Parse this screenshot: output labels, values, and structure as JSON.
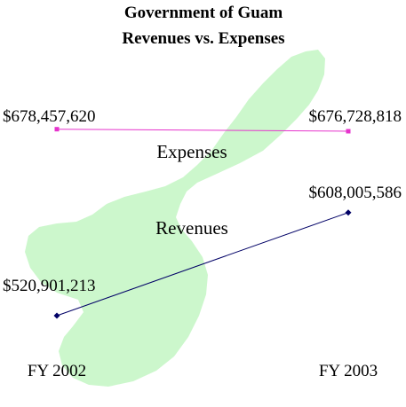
{
  "colors": {
    "island": "#ccf7cc",
    "expenses": "#e633cc",
    "revenues": "#000066"
  },
  "chart_data": {
    "type": "line",
    "title": "Government of Guam",
    "subtitle": "Revenues vs. Expenses",
    "categories": [
      "FY 2002",
      "FY 2003"
    ],
    "series": [
      {
        "name": "Expenses",
        "values": [
          678457620,
          676728818
        ],
        "labels": [
          "$678,457,620",
          "$676,728,818"
        ]
      },
      {
        "name": "Revenues",
        "values": [
          520901213,
          608005586
        ],
        "labels": [
          "$520,901,213",
          "$608,005,586"
        ]
      }
    ],
    "grid": false,
    "legend": "none",
    "background_image": "guam-island-silhouette"
  }
}
